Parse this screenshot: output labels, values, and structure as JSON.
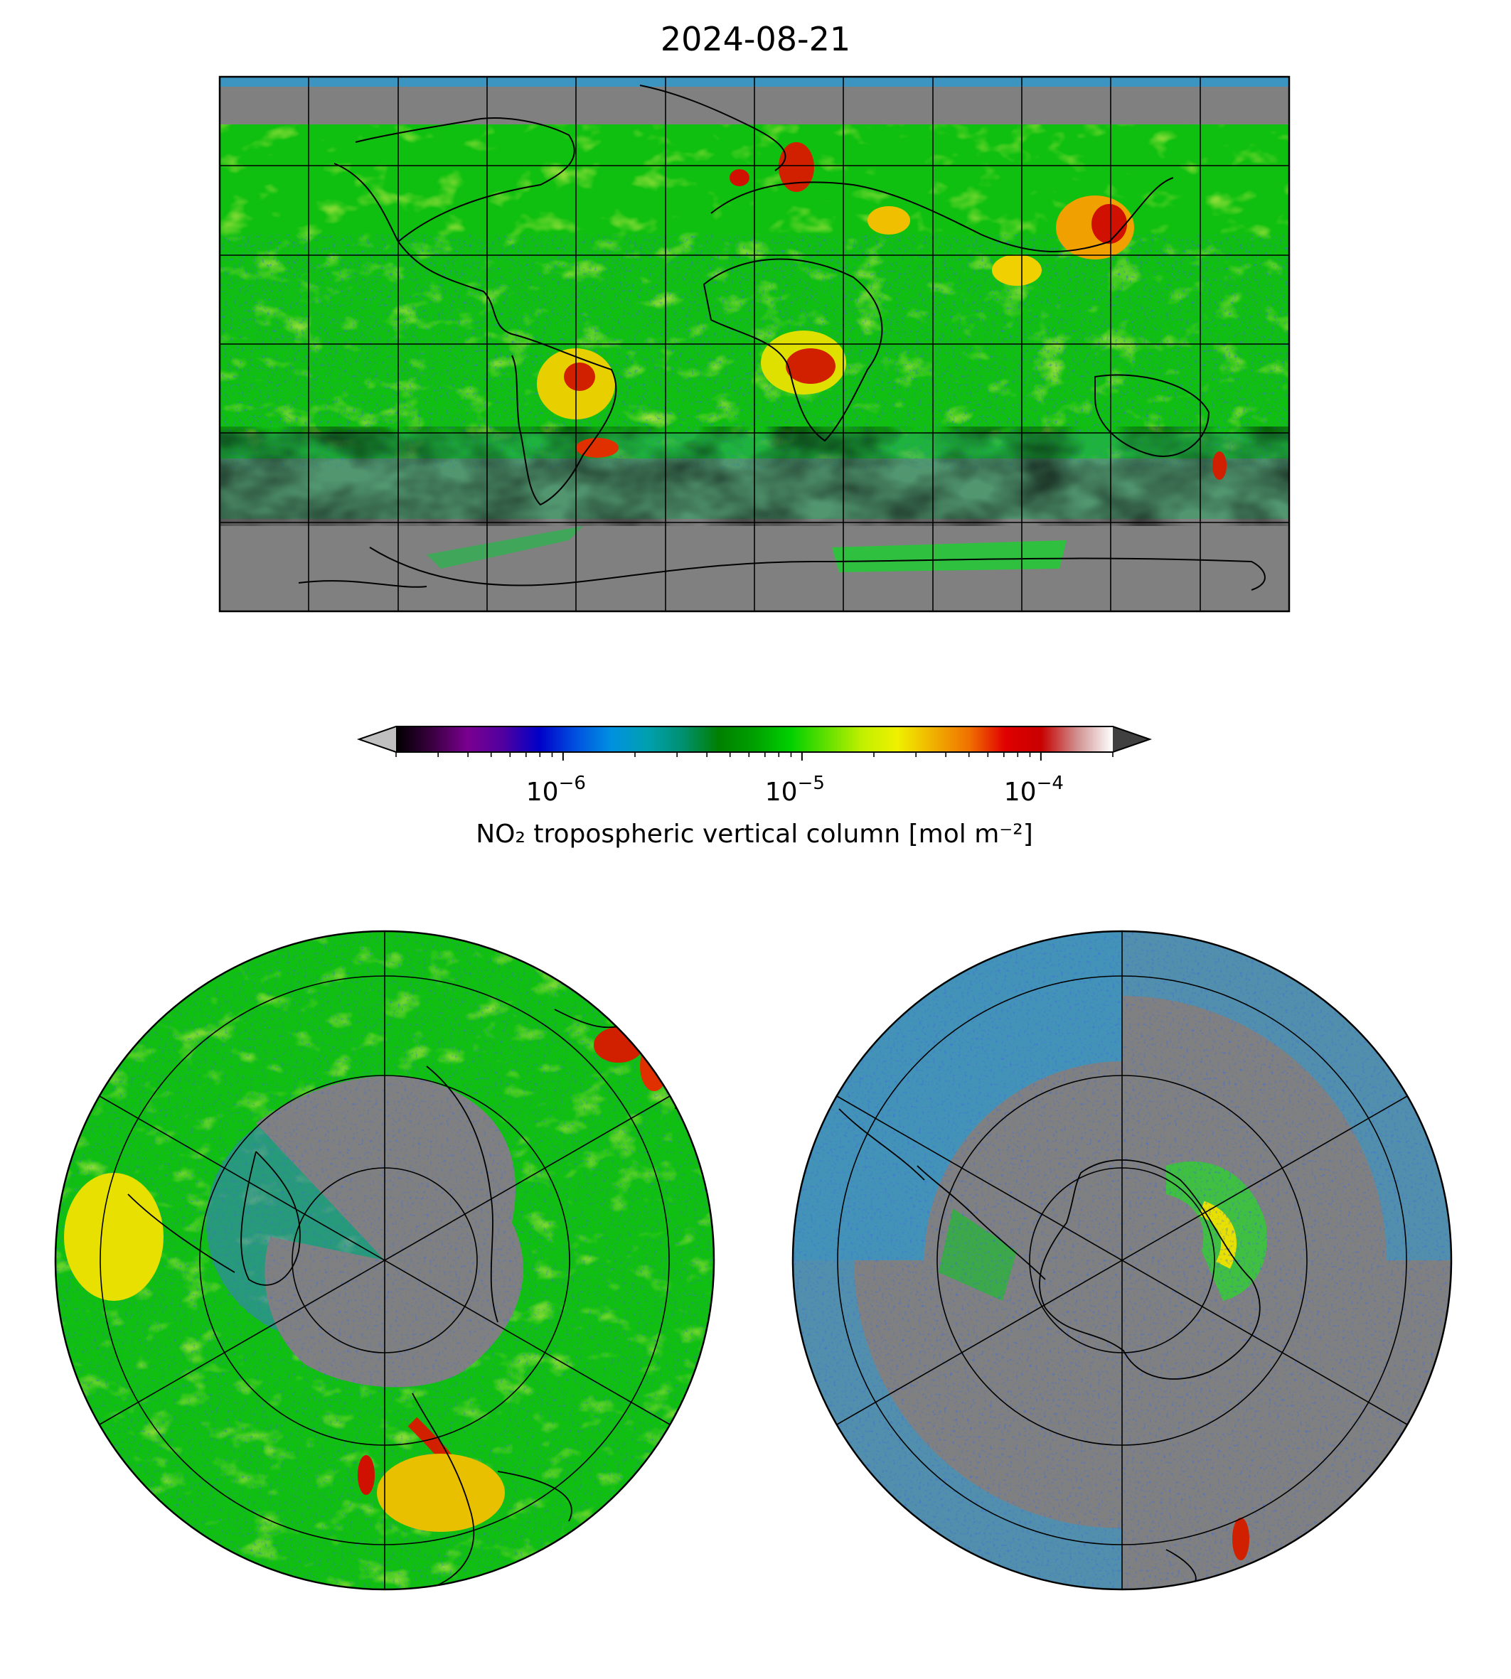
{
  "title": "2024-08-21",
  "colorbar": {
    "label": "NO₂ tropospheric vertical column [mol m⁻²]",
    "scale": "log",
    "range": [
      2e-07,
      0.0002
    ],
    "ticks": [
      {
        "value": 1e-06,
        "base": "10",
        "exp": "−6"
      },
      {
        "value": 1e-05,
        "base": "10",
        "exp": "−5"
      },
      {
        "value": 0.0001,
        "base": "10",
        "exp": "−4"
      }
    ],
    "extend": "both",
    "under_color": "#c0c0c0",
    "over_color": "#404040",
    "colormap": [
      "#000000",
      "#3a0040",
      "#7a0090",
      "#5000a0",
      "#0000c8",
      "#0050e0",
      "#0090e0",
      "#00a0b0",
      "#009070",
      "#008000",
      "#00a000",
      "#00d000",
      "#60e000",
      "#c0f000",
      "#f0f000",
      "#f0b000",
      "#f07000",
      "#e00000",
      "#c80000",
      "#d09090",
      "#ffffff"
    ]
  },
  "maps": {
    "no_data_color": "#808080",
    "land_line_color": "#000000",
    "global": {
      "projection": "plate-carree",
      "lon_lines": 12,
      "lat_lines": 6
    },
    "north": {
      "projection": "north-polar-stereographic",
      "meridians": 6,
      "parallels": 3
    },
    "south": {
      "projection": "south-polar-stereographic",
      "meridians": 6,
      "parallels": 3
    }
  }
}
